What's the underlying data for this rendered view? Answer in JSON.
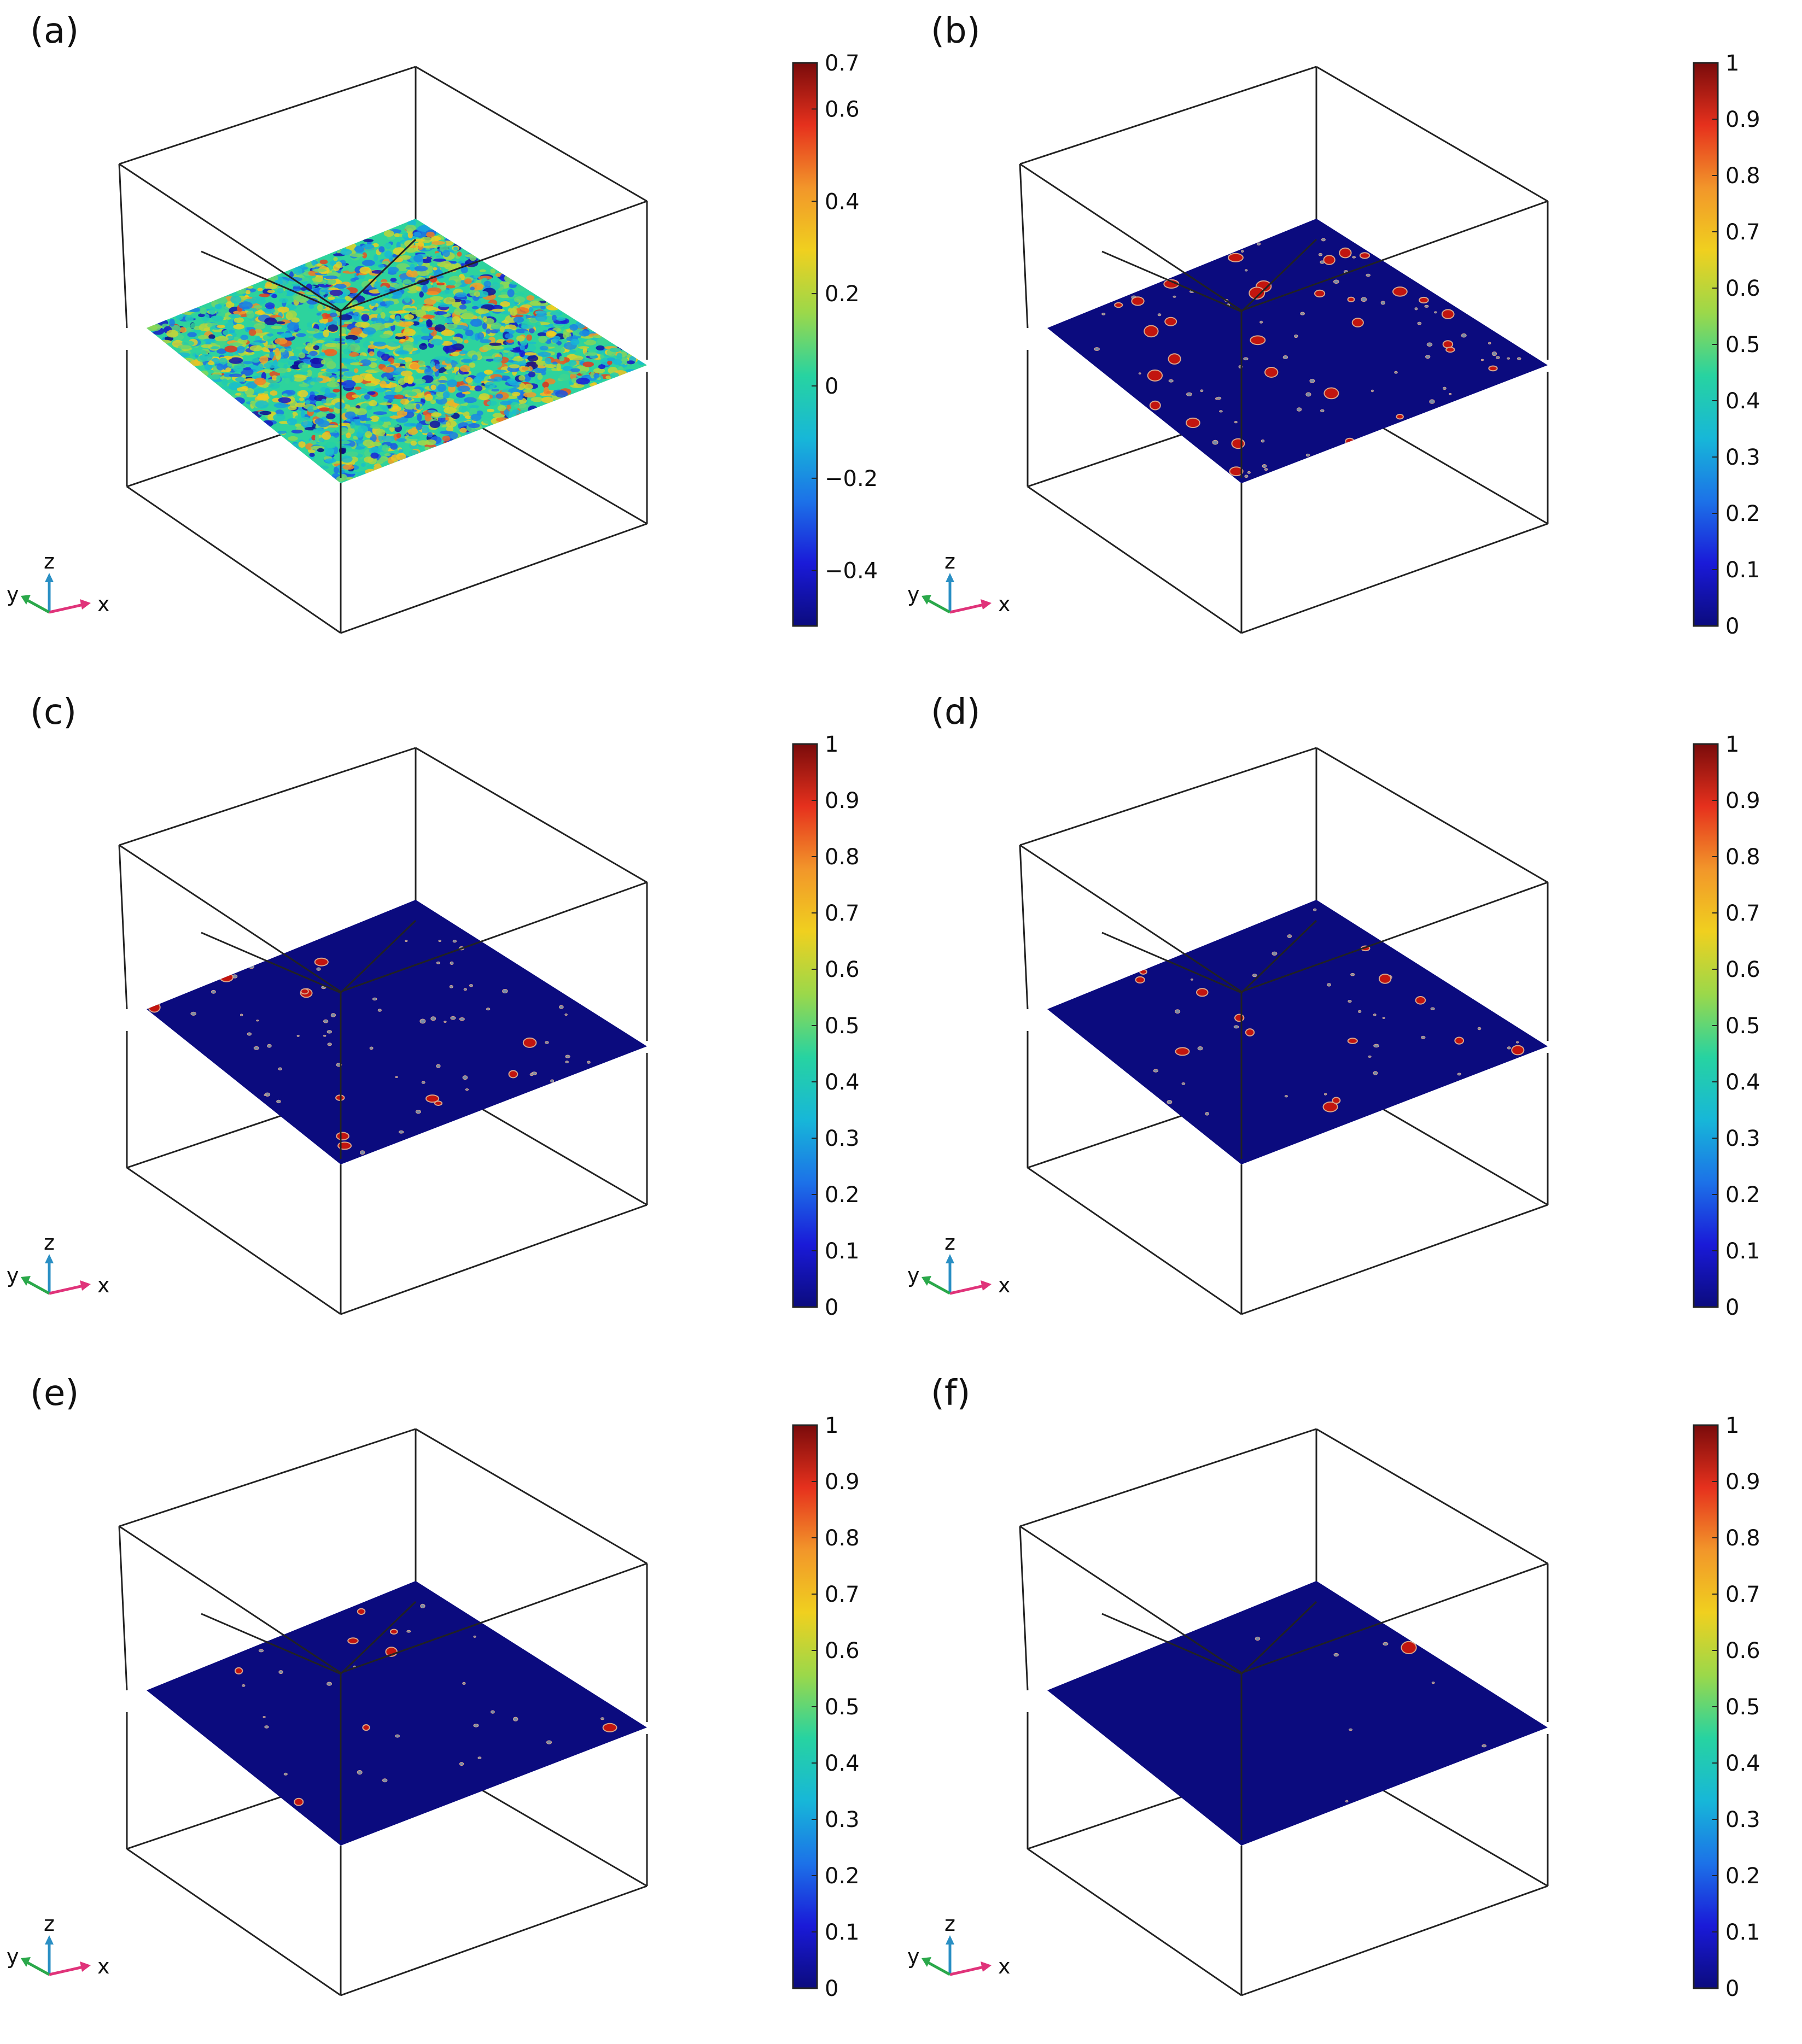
{
  "colormap": [
    "#0b0b7e",
    "#1a1ad8",
    "#1c72e8",
    "#17b7d8",
    "#27d3a1",
    "#9bd84a",
    "#f0d01f",
    "#f2962a",
    "#e6311d",
    "#7a0b0b"
  ],
  "panels": [
    {
      "label": "(a)",
      "colorbar_ticks": [
        "0.7",
        "0.6",
        "0.4",
        "0.2",
        "0",
        "−0.2",
        "−0.4"
      ],
      "colorbar_tick_values": [
        0.7,
        0.6,
        0.4,
        0.2,
        0,
        -0.2,
        -0.4
      ],
      "colorbar_range": [
        -0.52,
        0.7
      ],
      "field": "noise",
      "spot_count": 0
    },
    {
      "label": "(b)",
      "colorbar_ticks": [
        "1",
        "0.9",
        "0.8",
        "0.7",
        "0.6",
        "0.5",
        "0.4",
        "0.3",
        "0.2",
        "0.1",
        "0"
      ],
      "colorbar_tick_values": [
        1,
        0.9,
        0.8,
        0.7,
        0.6,
        0.5,
        0.4,
        0.3,
        0.2,
        0.1,
        0
      ],
      "colorbar_range": [
        0,
        1
      ],
      "field": "spots",
      "spot_count": 95
    },
    {
      "label": "(c)",
      "colorbar_ticks": [
        "1",
        "0.9",
        "0.8",
        "0.7",
        "0.6",
        "0.5",
        "0.4",
        "0.3",
        "0.2",
        "0.1",
        "0"
      ],
      "colorbar_tick_values": [
        1,
        0.9,
        0.8,
        0.7,
        0.6,
        0.5,
        0.4,
        0.3,
        0.2,
        0.1,
        0
      ],
      "colorbar_range": [
        0,
        1
      ],
      "field": "spots",
      "spot_count": 70
    },
    {
      "label": "(d)",
      "colorbar_ticks": [
        "1",
        "0.9",
        "0.8",
        "0.7",
        "0.6",
        "0.5",
        "0.4",
        "0.3",
        "0.2",
        "0.1",
        "0"
      ],
      "colorbar_tick_values": [
        1,
        0.9,
        0.8,
        0.7,
        0.6,
        0.5,
        0.4,
        0.3,
        0.2,
        0.1,
        0
      ],
      "colorbar_range": [
        0,
        1
      ],
      "field": "spots",
      "spot_count": 45
    },
    {
      "label": "(e)",
      "colorbar_ticks": [
        "1",
        "0.9",
        "0.8",
        "0.7",
        "0.6",
        "0.5",
        "0.4",
        "0.3",
        "0.2",
        "0.1",
        "0"
      ],
      "colorbar_tick_values": [
        1,
        0.9,
        0.8,
        0.7,
        0.6,
        0.5,
        0.4,
        0.3,
        0.2,
        0.1,
        0
      ],
      "colorbar_range": [
        0,
        1
      ],
      "field": "spots",
      "spot_count": 30
    },
    {
      "label": "(f)",
      "colorbar_ticks": [
        "1",
        "0.9",
        "0.8",
        "0.7",
        "0.6",
        "0.5",
        "0.4",
        "0.3",
        "0.2",
        "0.1",
        "0"
      ],
      "colorbar_tick_values": [
        1,
        0.9,
        0.8,
        0.7,
        0.6,
        0.5,
        0.4,
        0.3,
        0.2,
        0.1,
        0
      ],
      "colorbar_range": [
        0,
        1
      ],
      "field": "spots",
      "spot_count": 8
    }
  ],
  "axis_triad": {
    "x": "x",
    "y": "y",
    "z": "z"
  }
}
